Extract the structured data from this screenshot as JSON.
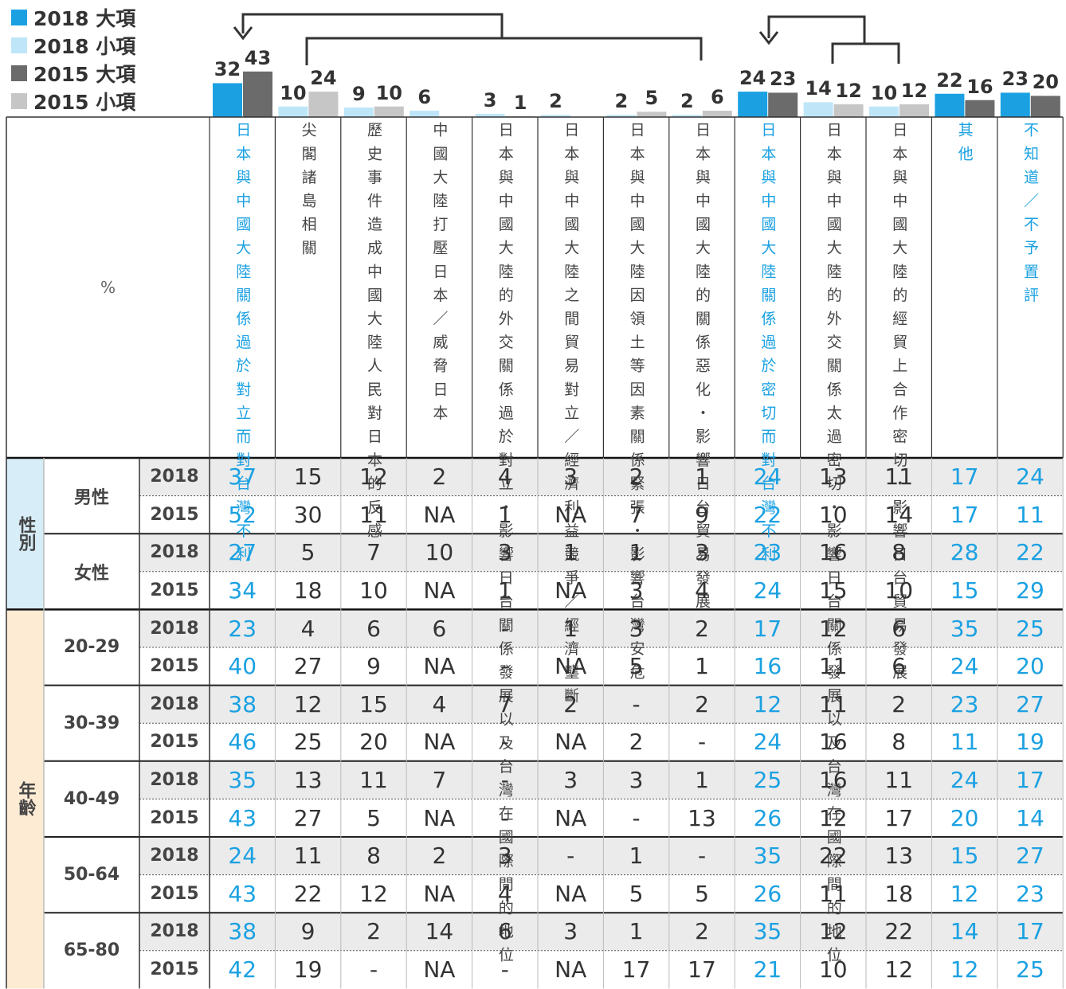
{
  "legend": [
    {
      "label": "2018 大項",
      "color": "#1ba1e2"
    },
    {
      "label": "2018 小項",
      "color": "#bfe6f8"
    },
    {
      "label": "2015 大項",
      "color": "#6b6b6b"
    },
    {
      "label": "2015 小項",
      "color": "#c6c6c6"
    }
  ],
  "header_label": "%",
  "columns": [
    {
      "label": "日本與中國大陸關係過於對立而對台灣不利",
      "highlight": true,
      "bars": [
        {
          "series": 0,
          "value": 32
        },
        {
          "series": 2,
          "value": 43
        }
      ]
    },
    {
      "label": "尖閣諸島相關",
      "highlight": false,
      "bars": [
        {
          "series": 1,
          "value": 10
        },
        {
          "series": 3,
          "value": 24
        }
      ]
    },
    {
      "label": "歷史事件造成中國大陸人民對日本的反感",
      "highlight": false,
      "bars": [
        {
          "series": 1,
          "value": 9
        },
        {
          "series": 3,
          "value": 10
        }
      ]
    },
    {
      "label": "中國大陸打壓日本／威脅日本",
      "highlight": false,
      "bars": [
        {
          "series": 1,
          "value": 6
        }
      ]
    },
    {
      "label": "日本與中國大陸的外交關係過於對立・影響日台關係發展以及台灣在國際間的地位",
      "highlight": false,
      "bars": [
        {
          "series": 1,
          "value": 3
        },
        {
          "series": 3,
          "value": 1
        }
      ]
    },
    {
      "label": "日本與中國大陸之間貿易對立／經濟利益競爭／經濟壟斷",
      "highlight": false,
      "bars": [
        {
          "series": 1,
          "value": 2
        }
      ]
    },
    {
      "label": "日本與中國大陸因領土等因素關係緊張・影響台灣安危",
      "highlight": false,
      "bars": [
        {
          "series": 1,
          "value": 2
        },
        {
          "series": 3,
          "value": 5
        }
      ]
    },
    {
      "label": "日本與中國大陸的關係惡化・影響日台貿易發展",
      "highlight": false,
      "bars": [
        {
          "series": 1,
          "value": 2
        },
        {
          "series": 3,
          "value": 6
        }
      ]
    },
    {
      "label": "日本與中國大陸關係過於密切而對台灣不利",
      "highlight": true,
      "bars": [
        {
          "series": 0,
          "value": 24
        },
        {
          "series": 2,
          "value": 23
        }
      ]
    },
    {
      "label": "日本與中國大陸的外交關係太過密切・影響日台關係發展以及台灣在國際間的地位",
      "highlight": false,
      "bars": [
        {
          "series": 1,
          "value": 14
        },
        {
          "series": 3,
          "value": 12
        }
      ]
    },
    {
      "label": "日本與中國大陸的經貿上合作密切・影響日台貿易發展",
      "highlight": false,
      "bars": [
        {
          "series": 1,
          "value": 10
        },
        {
          "series": 3,
          "value": 12
        }
      ]
    },
    {
      "label": "其他",
      "highlight": true,
      "bars": [
        {
          "series": 0,
          "value": 22
        },
        {
          "series": 2,
          "value": 16
        }
      ]
    },
    {
      "label": "不知道／不予置評",
      "highlight": true,
      "bars": [
        {
          "series": 0,
          "value": 23
        },
        {
          "series": 2,
          "value": 20
        }
      ]
    }
  ],
  "groups": [
    {
      "label": "性別",
      "color": "#d7edf7",
      "subgroups": [
        {
          "label": "男性",
          "rows": [
            {
              "year": "2018",
              "cells": [
                37,
                15,
                12,
                2,
                4,
                3,
                2,
                1,
                24,
                13,
                11,
                17,
                24
              ]
            },
            {
              "year": "2015",
              "cells": [
                52,
                30,
                11,
                "NA",
                1,
                "NA",
                7,
                9,
                22,
                10,
                14,
                17,
                11
              ]
            }
          ]
        },
        {
          "label": "女性",
          "rows": [
            {
              "year": "2018",
              "cells": [
                27,
                5,
                7,
                10,
                3,
                1,
                1,
                3,
                23,
                16,
                8,
                28,
                22
              ]
            },
            {
              "year": "2015",
              "cells": [
                34,
                18,
                10,
                "NA",
                1,
                "NA",
                3,
                4,
                24,
                15,
                10,
                15,
                29
              ]
            }
          ]
        }
      ]
    },
    {
      "label": "年齡",
      "color": "#fdebd4",
      "subgroups": [
        {
          "label": "20-29",
          "rows": [
            {
              "year": "2018",
              "cells": [
                23,
                4,
                6,
                6,
                "-",
                1,
                3,
                2,
                17,
                12,
                6,
                35,
                25
              ]
            },
            {
              "year": "2015",
              "cells": [
                40,
                27,
                9,
                "NA",
                "-",
                "NA",
                5,
                1,
                16,
                11,
                6,
                24,
                20
              ]
            }
          ]
        },
        {
          "label": "30-39",
          "rows": [
            {
              "year": "2018",
              "cells": [
                38,
                12,
                15,
                4,
                7,
                2,
                "-",
                2,
                12,
                11,
                2,
                23,
                27
              ]
            },
            {
              "year": "2015",
              "cells": [
                46,
                25,
                20,
                "NA",
                "-",
                "NA",
                2,
                "-",
                24,
                16,
                8,
                11,
                19
              ]
            }
          ]
        },
        {
          "label": "40-49",
          "rows": [
            {
              "year": "2018",
              "cells": [
                35,
                13,
                11,
                7,
                "-",
                3,
                3,
                1,
                25,
                16,
                11,
                24,
                17
              ]
            },
            {
              "year": "2015",
              "cells": [
                43,
                27,
                5,
                "NA",
                "-",
                "NA",
                "-",
                13,
                26,
                12,
                17,
                20,
                14
              ]
            }
          ]
        },
        {
          "label": "50-64",
          "rows": [
            {
              "year": "2018",
              "cells": [
                24,
                11,
                8,
                2,
                3,
                "-",
                1,
                "-",
                35,
                22,
                13,
                15,
                27
              ]
            },
            {
              "year": "2015",
              "cells": [
                43,
                22,
                12,
                "NA",
                4,
                "NA",
                5,
                5,
                26,
                11,
                18,
                12,
                23
              ]
            }
          ]
        },
        {
          "label": "65-80",
          "rows": [
            {
              "year": "2018",
              "cells": [
                38,
                9,
                2,
                14,
                6,
                3,
                1,
                2,
                35,
                12,
                22,
                14,
                17
              ]
            },
            {
              "year": "2015",
              "cells": [
                42,
                19,
                "-",
                "NA",
                "-",
                "NA",
                17,
                17,
                21,
                10,
                12,
                12,
                25
              ]
            }
          ]
        }
      ]
    }
  ]
}
